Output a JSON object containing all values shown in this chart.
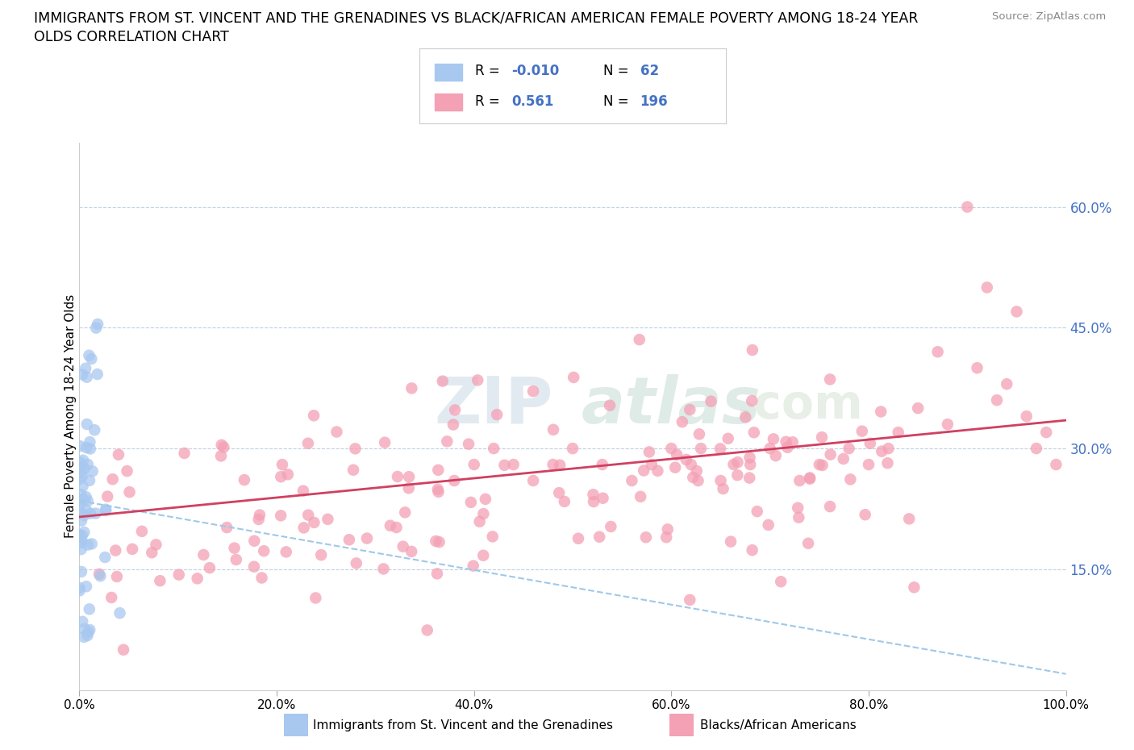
{
  "title_line1": "IMMIGRANTS FROM ST. VINCENT AND THE GRENADINES VS BLACK/AFRICAN AMERICAN FEMALE POVERTY AMONG 18-24 YEAR",
  "title_line2": "OLDS CORRELATION CHART",
  "source_text": "Source: ZipAtlas.com",
  "ylabel": "Female Poverty Among 18-24 Year Olds",
  "xlim": [
    0,
    1.0
  ],
  "ylim": [
    0.0,
    0.68
  ],
  "xtick_labels": [
    "0.0%",
    "20.0%",
    "40.0%",
    "60.0%",
    "80.0%",
    "100.0%"
  ],
  "xtick_vals": [
    0.0,
    0.2,
    0.4,
    0.6,
    0.8,
    1.0
  ],
  "ytick_labels": [
    "15.0%",
    "30.0%",
    "45.0%",
    "60.0%"
  ],
  "ytick_vals": [
    0.15,
    0.3,
    0.45,
    0.6
  ],
  "color_blue": "#A8C8F0",
  "color_pink": "#F4A0B5",
  "trendline1_color": "#A0C8E8",
  "trendline2_color": "#D04060",
  "watermark_color": "#C8D8E8",
  "blue_r": "-0.010",
  "blue_n": "62",
  "pink_r": "0.561",
  "pink_n": "196"
}
